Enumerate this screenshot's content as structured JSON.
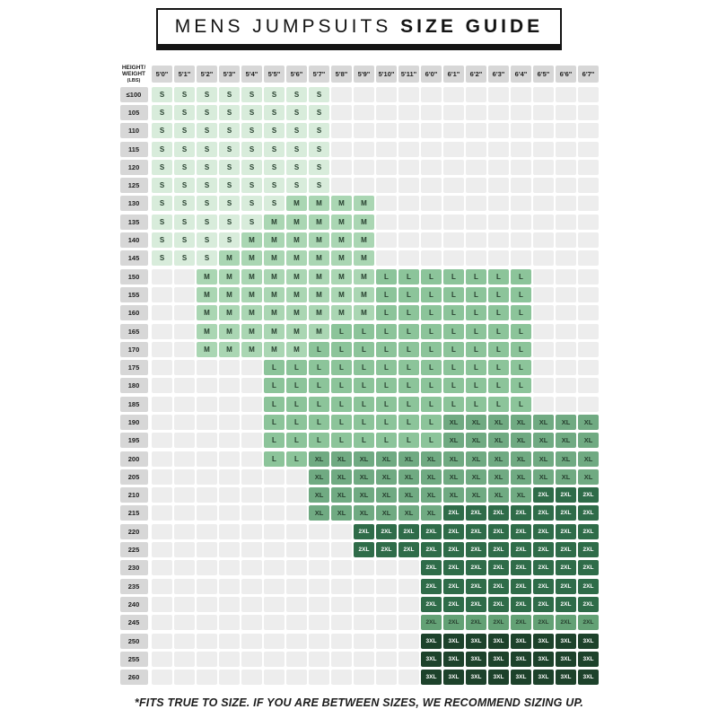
{
  "title": {
    "regular": "MENS JUMPSUITS ",
    "bold": "SIZE GUIDE"
  },
  "corner": {
    "line1": "HEIGHT/",
    "line2": "WEIGHT",
    "line3": "(LBS)"
  },
  "footer": "*FITS TRUE TO SIZE. IF YOU ARE BETWEEN SIZES, WE RECOMMEND SIZING UP.",
  "colors": {
    "S": "#d8ecdb",
    "M": "#aad6b3",
    "L": "#8cc49a",
    "XL": "#70aa82",
    "2XL": "#2f6c49",
    "2XL_light_row_245": "#63a175",
    "3XL": "#1d422b",
    "empty_cell": "#ededed",
    "header_cell": "#d7d7d7",
    "dark_text": "#27402f",
    "light_text": "#ffffff"
  },
  "chart_data": {
    "type": "heatmap",
    "title": "MENS JUMPSUITS SIZE GUIDE",
    "x_label": "HEIGHT",
    "y_label": "WEIGHT (LBS)",
    "sizes": [
      "S",
      "M",
      "L",
      "XL",
      "2XL",
      "3XL"
    ],
    "x_categories": [
      "5'0\"",
      "5'1\"",
      "5'2\"",
      "5'3\"",
      "5'4\"",
      "5'5\"",
      "5'6\"",
      "5'7\"",
      "5'8\"",
      "5'9\"",
      "5'10\"",
      "5'11\"",
      "6'0\"",
      "6'1\"",
      "6'2\"",
      "6'3\"",
      "6'4\"",
      "6'5\"",
      "6'6\"",
      "6'7\""
    ],
    "y_categories": [
      "≤100",
      "105",
      "110",
      "115",
      "120",
      "125",
      "130",
      "135",
      "140",
      "145",
      "150",
      "155",
      "160",
      "165",
      "170",
      "175",
      "180",
      "185",
      "190",
      "195",
      "200",
      "205",
      "210",
      "215",
      "220",
      "225",
      "230",
      "235",
      "240",
      "245",
      "250",
      "255",
      "260"
    ],
    "rows": [
      {
        "weight": "≤100",
        "ranges": [
          {
            "size": "S",
            "from": "5'0\"",
            "to": "5'7\""
          }
        ]
      },
      {
        "weight": "105",
        "ranges": [
          {
            "size": "S",
            "from": "5'0\"",
            "to": "5'7\""
          }
        ]
      },
      {
        "weight": "110",
        "ranges": [
          {
            "size": "S",
            "from": "5'0\"",
            "to": "5'7\""
          }
        ]
      },
      {
        "weight": "115",
        "ranges": [
          {
            "size": "S",
            "from": "5'0\"",
            "to": "5'7\""
          }
        ]
      },
      {
        "weight": "120",
        "ranges": [
          {
            "size": "S",
            "from": "5'0\"",
            "to": "5'7\""
          }
        ]
      },
      {
        "weight": "125",
        "ranges": [
          {
            "size": "S",
            "from": "5'0\"",
            "to": "5'7\""
          }
        ]
      },
      {
        "weight": "130",
        "ranges": [
          {
            "size": "S",
            "from": "5'0\"",
            "to": "5'5\""
          },
          {
            "size": "M",
            "from": "5'6\"",
            "to": "5'9\""
          }
        ]
      },
      {
        "weight": "135",
        "ranges": [
          {
            "size": "S",
            "from": "5'0\"",
            "to": "5'4\""
          },
          {
            "size": "M",
            "from": "5'5\"",
            "to": "5'9\""
          }
        ]
      },
      {
        "weight": "140",
        "ranges": [
          {
            "size": "S",
            "from": "5'0\"",
            "to": "5'3\""
          },
          {
            "size": "M",
            "from": "5'4\"",
            "to": "5'9\""
          }
        ]
      },
      {
        "weight": "145",
        "ranges": [
          {
            "size": "S",
            "from": "5'0\"",
            "to": "5'2\""
          },
          {
            "size": "M",
            "from": "5'3\"",
            "to": "5'9\""
          }
        ]
      },
      {
        "weight": "150",
        "ranges": [
          {
            "size": "M",
            "from": "5'2\"",
            "to": "5'9\""
          },
          {
            "size": "L",
            "from": "5'10\"",
            "to": "6'4\""
          }
        ]
      },
      {
        "weight": "155",
        "ranges": [
          {
            "size": "M",
            "from": "5'2\"",
            "to": "5'9\""
          },
          {
            "size": "L",
            "from": "5'10\"",
            "to": "6'4\""
          }
        ]
      },
      {
        "weight": "160",
        "ranges": [
          {
            "size": "M",
            "from": "5'2\"",
            "to": "5'9\""
          },
          {
            "size": "L",
            "from": "5'10\"",
            "to": "6'4\""
          }
        ]
      },
      {
        "weight": "165",
        "ranges": [
          {
            "size": "M",
            "from": "5'2\"",
            "to": "5'7\""
          },
          {
            "size": "L",
            "from": "5'8\"",
            "to": "6'4\""
          }
        ]
      },
      {
        "weight": "170",
        "ranges": [
          {
            "size": "M",
            "from": "5'2\"",
            "to": "5'6\""
          },
          {
            "size": "L",
            "from": "5'7\"",
            "to": "6'4\""
          }
        ]
      },
      {
        "weight": "175",
        "ranges": [
          {
            "size": "L",
            "from": "5'5\"",
            "to": "6'4\""
          }
        ]
      },
      {
        "weight": "180",
        "ranges": [
          {
            "size": "L",
            "from": "5'5\"",
            "to": "6'4\""
          }
        ]
      },
      {
        "weight": "185",
        "ranges": [
          {
            "size": "L",
            "from": "5'5\"",
            "to": "6'4\""
          }
        ]
      },
      {
        "weight": "190",
        "ranges": [
          {
            "size": "L",
            "from": "5'5\"",
            "to": "6'0\""
          },
          {
            "size": "XL",
            "from": "6'1\"",
            "to": "6'7\""
          }
        ]
      },
      {
        "weight": "195",
        "ranges": [
          {
            "size": "L",
            "from": "5'5\"",
            "to": "6'0\""
          },
          {
            "size": "XL",
            "from": "6'1\"",
            "to": "6'7\""
          }
        ]
      },
      {
        "weight": "200",
        "ranges": [
          {
            "size": "L",
            "from": "5'5\"",
            "to": "5'6\""
          },
          {
            "size": "XL",
            "from": "5'7\"",
            "to": "6'7\""
          }
        ]
      },
      {
        "weight": "205",
        "ranges": [
          {
            "size": "XL",
            "from": "5'7\"",
            "to": "6'7\""
          }
        ]
      },
      {
        "weight": "210",
        "ranges": [
          {
            "size": "XL",
            "from": "5'7\"",
            "to": "6'4\""
          },
          {
            "size": "2XL",
            "from": "6'5\"",
            "to": "6'7\""
          }
        ]
      },
      {
        "weight": "215",
        "ranges": [
          {
            "size": "XL",
            "from": "5'7\"",
            "to": "6'0\""
          },
          {
            "size": "2XL",
            "from": "6'1\"",
            "to": "6'7\""
          }
        ]
      },
      {
        "weight": "220",
        "ranges": [
          {
            "size": "2XL",
            "from": "5'9\"",
            "to": "6'7\""
          }
        ]
      },
      {
        "weight": "225",
        "ranges": [
          {
            "size": "2XL",
            "from": "5'9\"",
            "to": "6'7\""
          }
        ]
      },
      {
        "weight": "230",
        "ranges": [
          {
            "size": "2XL",
            "from": "6'0\"",
            "to": "6'7\""
          }
        ]
      },
      {
        "weight": "235",
        "ranges": [
          {
            "size": "2XL",
            "from": "6'0\"",
            "to": "6'7\""
          }
        ]
      },
      {
        "weight": "240",
        "ranges": [
          {
            "size": "2XL",
            "from": "6'0\"",
            "to": "6'7\""
          }
        ]
      },
      {
        "weight": "245",
        "ranges": [
          {
            "size": "2XL",
            "from": "6'0\"",
            "to": "6'7\"",
            "variant": "light"
          }
        ]
      },
      {
        "weight": "250",
        "ranges": [
          {
            "size": "3XL",
            "from": "6'0\"",
            "to": "6'7\""
          }
        ]
      },
      {
        "weight": "255",
        "ranges": [
          {
            "size": "3XL",
            "from": "6'0\"",
            "to": "6'7\""
          }
        ]
      },
      {
        "weight": "260",
        "ranges": [
          {
            "size": "3XL",
            "from": "6'0\"",
            "to": "6'7\""
          }
        ]
      }
    ]
  }
}
